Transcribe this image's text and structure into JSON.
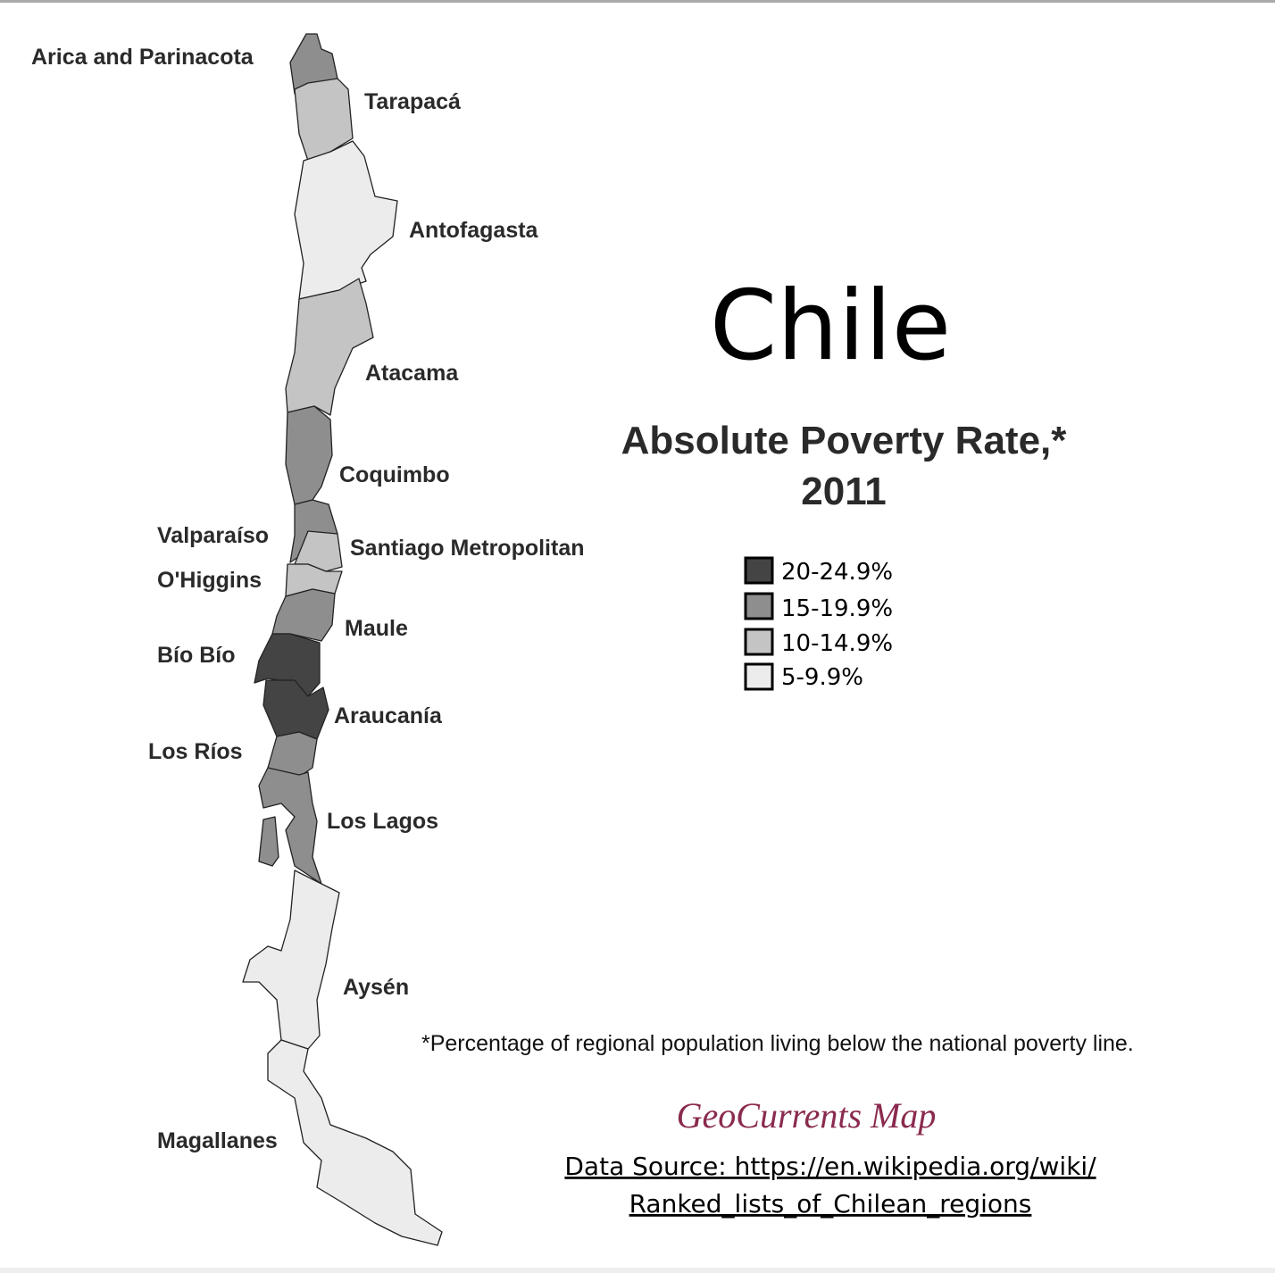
{
  "title": "Chile",
  "subtitle": [
    "Absolute Poverty Rate,*",
    "2011"
  ],
  "legend": [
    {
      "label": "20-24.9%",
      "color": "#444444"
    },
    {
      "label": "15-19.9%",
      "color": "#8e8e8e"
    },
    {
      "label": "10-14.9%",
      "color": "#c4c4c4"
    },
    {
      "label": "5-9.9%",
      "color": "#ececec"
    }
  ],
  "regions": [
    {
      "name": "Arica and Parinacota",
      "class": 1
    },
    {
      "name": "Tarapacá",
      "class": 2
    },
    {
      "name": "Antofagasta",
      "class": 3
    },
    {
      "name": "Atacama",
      "class": 2
    },
    {
      "name": "Coquimbo",
      "class": 1
    },
    {
      "name": "Valparaíso",
      "class": 1
    },
    {
      "name": "Santiago Metropolitan",
      "class": 2
    },
    {
      "name": "O'Higgins",
      "class": 2
    },
    {
      "name": "Maule",
      "class": 1
    },
    {
      "name": "Bío Bío",
      "class": 0
    },
    {
      "name": "Araucanía",
      "class": 0
    },
    {
      "name": "Los Ríos",
      "class": 1
    },
    {
      "name": "Los Lagos",
      "class": 1
    },
    {
      "name": "Aysén",
      "class": 3
    },
    {
      "name": "Magallanes",
      "class": 3
    }
  ],
  "footnote": "*Percentage of regional population living below the national poverty line.",
  "credit": "GeoCurrents Map",
  "source": [
    "Data Source: https://en.wikipedia.org/wiki/",
    "Ranked_lists_of_Chilean_regions"
  ]
}
